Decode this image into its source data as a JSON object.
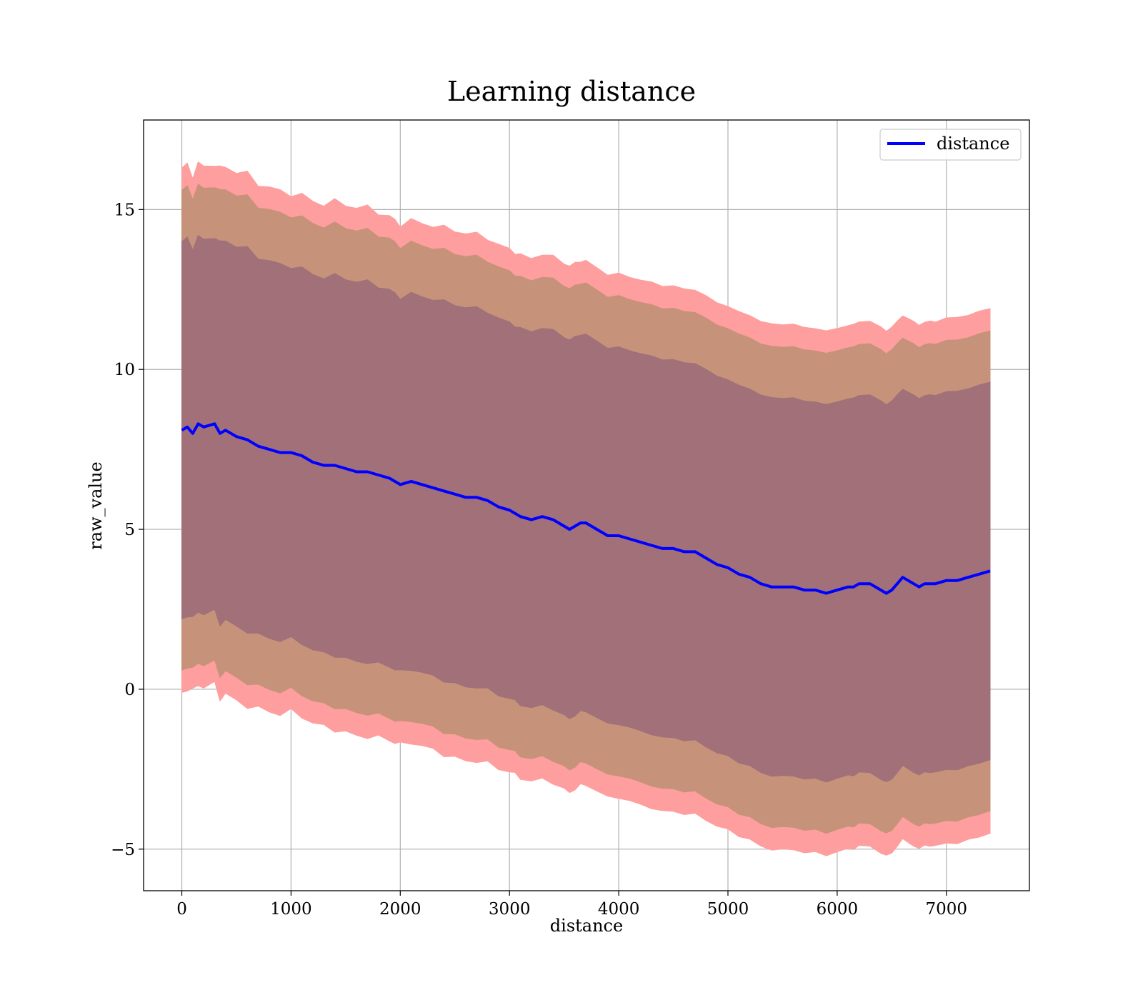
{
  "chart_data": {
    "type": "line",
    "title": "Learning distance",
    "xlabel": "distance",
    "ylabel": "raw_value",
    "xlim": [
      -350,
      7760
    ],
    "ylim": [
      -6.3,
      17.8
    ],
    "x_ticks": [
      0,
      1000,
      2000,
      3000,
      4000,
      5000,
      6000,
      7000
    ],
    "y_ticks": [
      -5,
      0,
      5,
      10,
      15
    ],
    "x_tick_labels": [
      "0",
      "1000",
      "2000",
      "3000",
      "4000",
      "5000",
      "6000",
      "7000"
    ],
    "y_tick_labels": [
      "−5",
      "0",
      "5",
      "10",
      "15"
    ],
    "grid": true,
    "legend": {
      "position": "top-right",
      "entries": [
        "distance"
      ]
    },
    "colors": {
      "line": "#0000ff",
      "band_outer": "#ff9e9e",
      "band_middle": "#c6937a",
      "band_inner": "#a17079"
    },
    "band_offsets": {
      "outer": 8.2,
      "middle": 7.5,
      "inner": 5.9
    },
    "series": [
      {
        "name": "distance",
        "x": [
          0,
          50,
          100,
          150,
          200,
          300,
          350,
          400,
          500,
          600,
          700,
          800,
          900,
          1000,
          1100,
          1200,
          1300,
          1400,
          1500,
          1600,
          1700,
          1800,
          1900,
          1950,
          2000,
          2100,
          2200,
          2300,
          2400,
          2500,
          2600,
          2700,
          2800,
          2900,
          3000,
          3050,
          3100,
          3200,
          3300,
          3400,
          3500,
          3550,
          3600,
          3650,
          3700,
          3800,
          3900,
          4000,
          4100,
          4200,
          4300,
          4400,
          4500,
          4600,
          4700,
          4800,
          4900,
          5000,
          5100,
          5200,
          5300,
          5400,
          5500,
          5600,
          5700,
          5800,
          5900,
          6000,
          6100,
          6150,
          6200,
          6300,
          6400,
          6450,
          6500,
          6550,
          6600,
          6700,
          6750,
          6800,
          6850,
          6900,
          7000,
          7100,
          7200,
          7300,
          7400
        ],
        "y": [
          8.1,
          8.2,
          8.0,
          8.3,
          8.2,
          8.3,
          8.0,
          8.1,
          7.9,
          7.8,
          7.6,
          7.5,
          7.4,
          7.4,
          7.3,
          7.1,
          7.0,
          7.0,
          6.9,
          6.8,
          6.8,
          6.7,
          6.6,
          6.5,
          6.4,
          6.5,
          6.4,
          6.3,
          6.2,
          6.1,
          6.0,
          6.0,
          5.9,
          5.7,
          5.6,
          5.5,
          5.4,
          5.3,
          5.4,
          5.3,
          5.1,
          5.0,
          5.1,
          5.2,
          5.2,
          5.0,
          4.8,
          4.8,
          4.7,
          4.6,
          4.5,
          4.4,
          4.4,
          4.3,
          4.3,
          4.1,
          3.9,
          3.8,
          3.6,
          3.5,
          3.3,
          3.2,
          3.2,
          3.2,
          3.1,
          3.1,
          3.0,
          3.1,
          3.2,
          3.2,
          3.3,
          3.3,
          3.1,
          3.0,
          3.1,
          3.3,
          3.5,
          3.3,
          3.2,
          3.3,
          3.3,
          3.3,
          3.4,
          3.4,
          3.5,
          3.6,
          3.7
        ]
      }
    ]
  }
}
